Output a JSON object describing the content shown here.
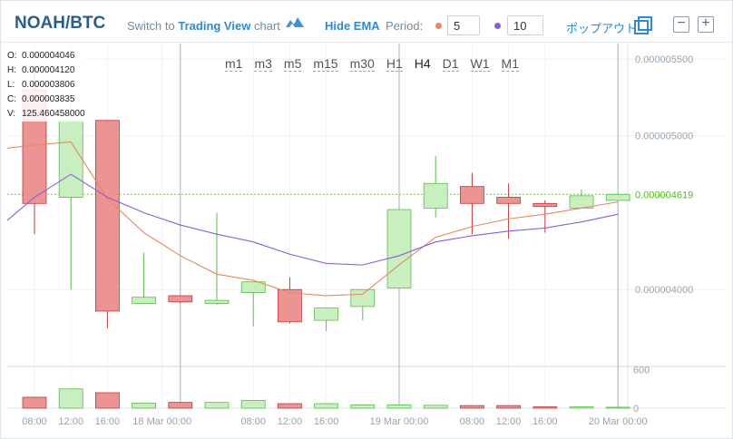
{
  "header": {
    "pair": "NOAH/BTC",
    "switch_prefix": "Switch to",
    "switch_link": "Trading View",
    "switch_suffix": "chart",
    "hide_ema": "Hide EMA",
    "period_label": "Period:",
    "period_fast": "5",
    "period_slow": "10",
    "popout": "ポップアウト",
    "zoom_out": "−",
    "zoom_in": "+"
  },
  "colors": {
    "ema_fast": "#e8875c",
    "ema_slow": "#8a5ed8",
    "bull_fill": "#c9efc0",
    "bull_stroke": "#5cbb4c",
    "bear_fill": "#ec9393",
    "bear_stroke": "#c0393a",
    "last_price": "#4cbb17",
    "accent": "#2e8ad1"
  },
  "icons": {
    "tv": "cloud-icon",
    "popout": "popout-icon"
  },
  "ohlcv": {
    "open_label": "O:",
    "open": "0.000004046",
    "high_label": "H:",
    "high": "0.000004120",
    "low_label": "L:",
    "low": "0.000003806",
    "close_label": "C:",
    "close": "0.000003835",
    "volume_label": "V:",
    "volume": "125.460458000"
  },
  "timeframes": [
    {
      "label": "m1",
      "active": false
    },
    {
      "label": "m3",
      "active": false
    },
    {
      "label": "m5",
      "active": false
    },
    {
      "label": "m15",
      "active": false
    },
    {
      "label": "m30",
      "active": false
    },
    {
      "label": "H1",
      "active": false
    },
    {
      "label": "H4",
      "active": true
    },
    {
      "label": "D1",
      "active": false
    },
    {
      "label": "W1",
      "active": false
    },
    {
      "label": "M1",
      "active": false
    }
  ],
  "chart_data": {
    "type": "candlestick",
    "interval": "H4",
    "price_axis_ticks": [
      "0.000005500",
      "0.000005000",
      "0.000004000"
    ],
    "price_axis_values": [
      5.5e-06,
      5e-06,
      4e-06
    ],
    "price_ylim": [
      3.5e-06,
      5.6e-06
    ],
    "last_price_label": "0.000004619",
    "last_price": 4.619e-06,
    "volume_axis_ticks": [
      "600",
      "0"
    ],
    "volume_axis_values": [
      600,
      0
    ],
    "volume_ylim": [
      0,
      650
    ],
    "x_tick_labels": [
      "08:00",
      "12:00",
      "16:00",
      "18 Mar 00:00",
      "08:00",
      "12:00",
      "16:00",
      "19 Mar 00:00",
      "08:00",
      "12:00",
      "16:00",
      "20 Mar 00:00"
    ],
    "x_tick_positions": [
      0,
      1,
      2,
      3.5,
      6,
      7,
      8,
      10,
      12,
      13,
      14,
      16
    ],
    "day_separators": [
      4,
      10,
      16
    ],
    "candles": [
      {
        "o": 5.3e-06,
        "h": 5.45e-06,
        "l": 4.36e-06,
        "c": 4.56e-06
      },
      {
        "o": 4.6e-06,
        "h": 5.3e-06,
        "l": 4e-06,
        "c": 5.1e-06
      },
      {
        "o": 5.1e-06,
        "h": 5.1e-06,
        "l": 3.75e-06,
        "c": 3.86e-06
      },
      {
        "o": 3.91e-06,
        "h": 4.24e-06,
        "l": 3.91e-06,
        "c": 3.95e-06
      },
      {
        "o": 3.96e-06,
        "h": 3.96e-06,
        "l": 3.91e-06,
        "c": 3.92e-06
      },
      {
        "o": 3.91e-06,
        "h": 4.5e-06,
        "l": 3.9e-06,
        "c": 3.93e-06
      },
      {
        "o": 3.98e-06,
        "h": 4.05e-06,
        "l": 3.76e-06,
        "c": 4.05e-06
      },
      {
        "o": 4e-06,
        "h": 4.08e-06,
        "l": 3.78e-06,
        "c": 3.79e-06
      },
      {
        "o": 3.8e-06,
        "h": 3.88e-06,
        "l": 3.73e-06,
        "c": 3.88e-06
      },
      {
        "o": 3.89e-06,
        "h": 4e-06,
        "l": 3.8e-06,
        "c": 4e-06
      },
      {
        "o": 4.01e-06,
        "h": 4.53e-06,
        "l": 4.01e-06,
        "c": 4.52e-06
      },
      {
        "o": 4.53e-06,
        "h": 4.87e-06,
        "l": 4.47e-06,
        "c": 4.69e-06
      },
      {
        "o": 4.67e-06,
        "h": 4.76e-06,
        "l": 4.36e-06,
        "c": 4.56e-06
      },
      {
        "o": 4.6e-06,
        "h": 4.69e-06,
        "l": 4.33e-06,
        "c": 4.56e-06
      },
      {
        "o": 4.56e-06,
        "h": 4.58e-06,
        "l": 4.37e-06,
        "c": 4.54e-06
      },
      {
        "o": 4.53e-06,
        "h": 4.65e-06,
        "l": 4.53e-06,
        "c": 4.61e-06
      },
      {
        "o": 4.58e-06,
        "h": 4.619e-06,
        "l": 4.58e-06,
        "c": 4.619e-06
      }
    ],
    "volumes": [
      170,
      300,
      240,
      80,
      90,
      90,
      120,
      70,
      70,
      50,
      50,
      45,
      40,
      40,
      20,
      20,
      15
    ],
    "ema_fast": [
      4.94e-06,
      4.96e-06,
      4.59e-06,
      4.37e-06,
      4.22e-06,
      4.1e-06,
      4.06e-06,
      3.98e-06,
      3.96e-06,
      3.97e-06,
      4.16e-06,
      4.34e-06,
      4.41e-06,
      4.46e-06,
      4.49e-06,
      4.53e-06,
      4.57e-06
    ],
    "ema_slow": [
      4.6e-06,
      4.75e-06,
      4.6e-06,
      4.5e-06,
      4.42e-06,
      4.36e-06,
      4.31e-06,
      4.23e-06,
      4.17e-06,
      4.16e-06,
      4.22e-06,
      4.31e-06,
      4.35e-06,
      4.38e-06,
      4.4e-06,
      4.44e-06,
      4.49e-06
    ]
  }
}
